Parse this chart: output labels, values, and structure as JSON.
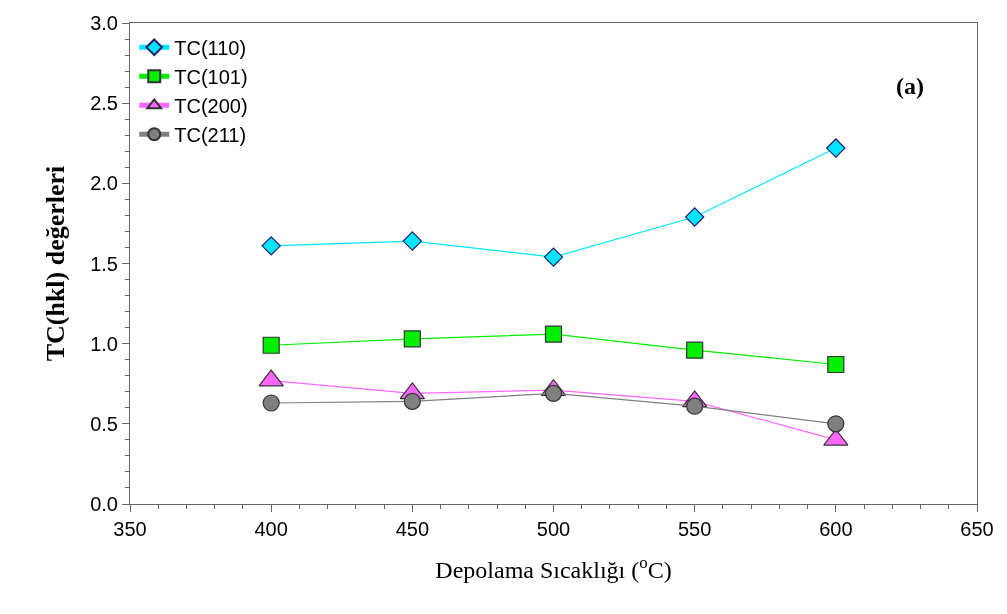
{
  "chart_data": {
    "type": "line",
    "xlabel": "Depolama Sıcaklığı ($^{o}$C)",
    "ylabel": "TC(hkl) değerleri",
    "annotations": [
      "(a)"
    ],
    "x": [
      400,
      450,
      500,
      550,
      600
    ],
    "series": [
      {
        "name": "TC(110)",
        "color": "#00e5ff",
        "marker": "diamond",
        "values": [
          1.61,
          1.64,
          1.54,
          1.79,
          2.22
        ]
      },
      {
        "name": "TC(101)",
        "color": "#00ee00",
        "marker": "square",
        "values": [
          0.99,
          1.03,
          1.06,
          0.96,
          0.87
        ]
      },
      {
        "name": "TC(200)",
        "color": "#ff66ff",
        "marker": "triangle",
        "values": [
          0.77,
          0.69,
          0.71,
          0.64,
          0.4
        ]
      },
      {
        "name": "TC(211)",
        "color": "#808080",
        "marker": "circle",
        "values": [
          0.63,
          0.64,
          0.69,
          0.61,
          0.5
        ]
      }
    ],
    "xlim": [
      350,
      650
    ],
    "xticks": [
      350,
      400,
      450,
      500,
      550,
      600,
      650
    ],
    "ylim": [
      0,
      3
    ],
    "yticks": [
      {
        "value": 0,
        "label": "0.0"
      },
      {
        "value": 0.5,
        "label": "0.5"
      },
      {
        "value": 1,
        "label": "1.0"
      },
      {
        "value": 1.5,
        "label": "1.5"
      },
      {
        "value": 2,
        "label": "2.0"
      },
      {
        "value": 2.5,
        "label": "2.5"
      },
      {
        "value": 3,
        "label": "3.0"
      }
    ],
    "legend": "top left",
    "line_style": "solid"
  }
}
